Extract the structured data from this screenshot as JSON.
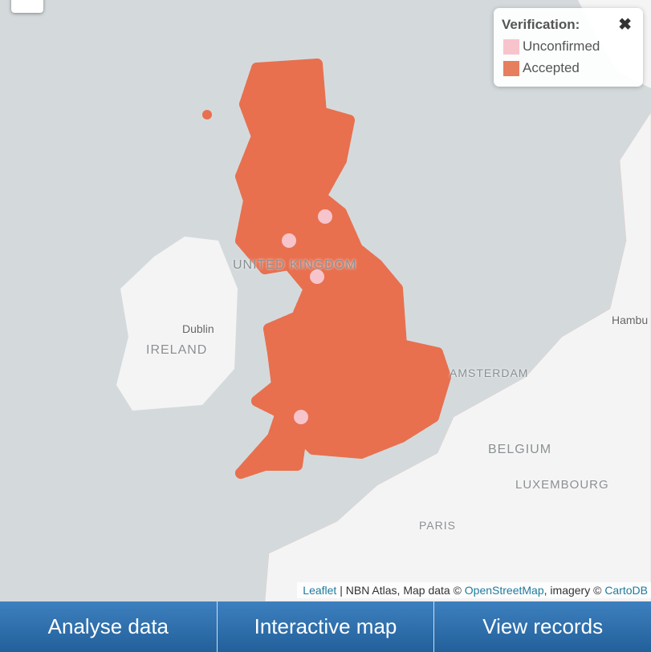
{
  "map": {
    "labels": {
      "uk": "UNITED KINGDOM",
      "ireland": "IRELAND",
      "dublin": "Dublin",
      "amsterdam": "AMSTERDAM",
      "belgium": "BELGIUM",
      "luxembourg": "LUXEMBOURG",
      "paris": "PARIS",
      "hamburg": "Hambu"
    },
    "colors": {
      "sea": "#d4dadc",
      "land": "#f4f4f4",
      "accepted": "#e8704f",
      "unconfirmed": "#f7c4cc"
    }
  },
  "legend": {
    "title": "Verification:",
    "close_icon": "close-icon",
    "items": [
      {
        "label": "Unconfirmed",
        "color": "#f7c4cc"
      },
      {
        "label": "Accepted",
        "color": "#e57f5d"
      }
    ]
  },
  "attribution": {
    "leaflet": "Leaflet",
    "sep1": " | NBN Atlas, Map data © ",
    "osm": "OpenStreetMap",
    "sep2": ", imagery © ",
    "carto": "CartoDB"
  },
  "buttons": {
    "analyse": "Analyse data",
    "map": "Interactive map",
    "records": "View records"
  }
}
